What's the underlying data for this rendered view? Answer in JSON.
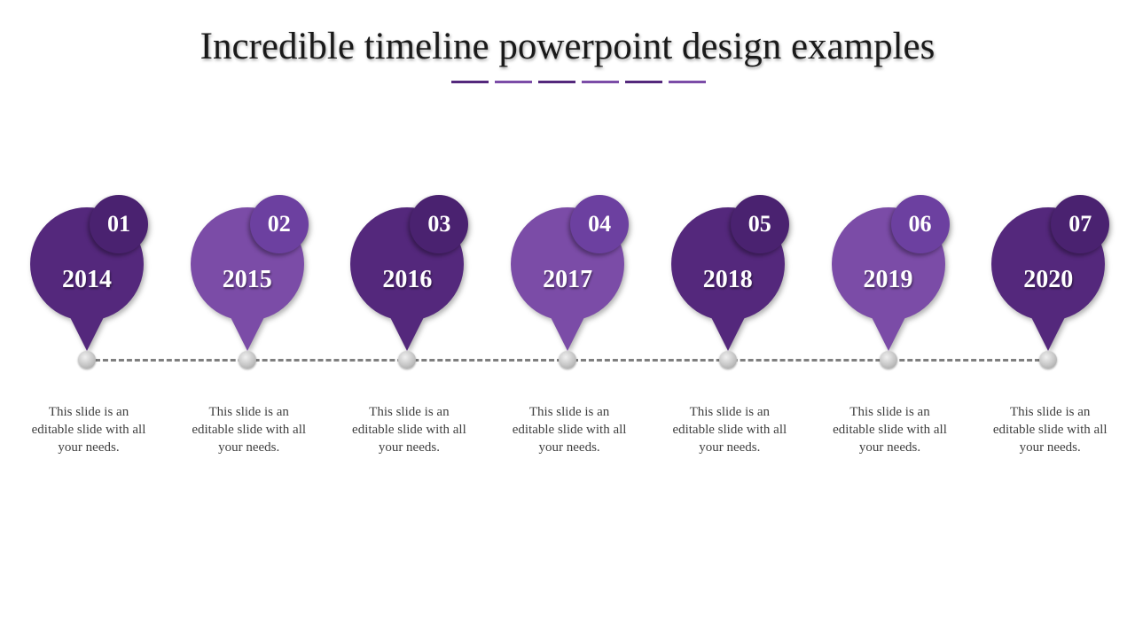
{
  "slide": {
    "title": "Incredible timeline powerpoint design examples"
  },
  "colors": {
    "dark_purple": "#54287c",
    "light_purple": "#7b4ca7",
    "badge_dark": "#4a2270",
    "badge_light": "#6c40a0",
    "underline_segments": [
      "#54287c",
      "#7b4ca7",
      "#54287c",
      "#7b4ca7",
      "#54287c",
      "#7b4ca7"
    ]
  },
  "timeline": {
    "items": [
      {
        "number": "01",
        "year": "2014",
        "text": "This slide is an editable slide with all your needs.",
        "tone": "dark"
      },
      {
        "number": "02",
        "year": "2015",
        "text": "This slide is an editable slide with all your needs.",
        "tone": "light"
      },
      {
        "number": "03",
        "year": "2016",
        "text": "This slide is an editable slide with all your needs.",
        "tone": "dark"
      },
      {
        "number": "04",
        "year": "2017",
        "text": "This slide is an editable slide with all your needs.",
        "tone": "light"
      },
      {
        "number": "05",
        "year": "2018",
        "text": "This slide is an editable slide with all your needs.",
        "tone": "dark"
      },
      {
        "number": "06",
        "year": "2019",
        "text": "This slide is an editable slide with all your needs.",
        "tone": "light"
      },
      {
        "number": "07",
        "year": "2020",
        "text": "This slide is an editable slide with all your needs.",
        "tone": "dark"
      }
    ]
  }
}
